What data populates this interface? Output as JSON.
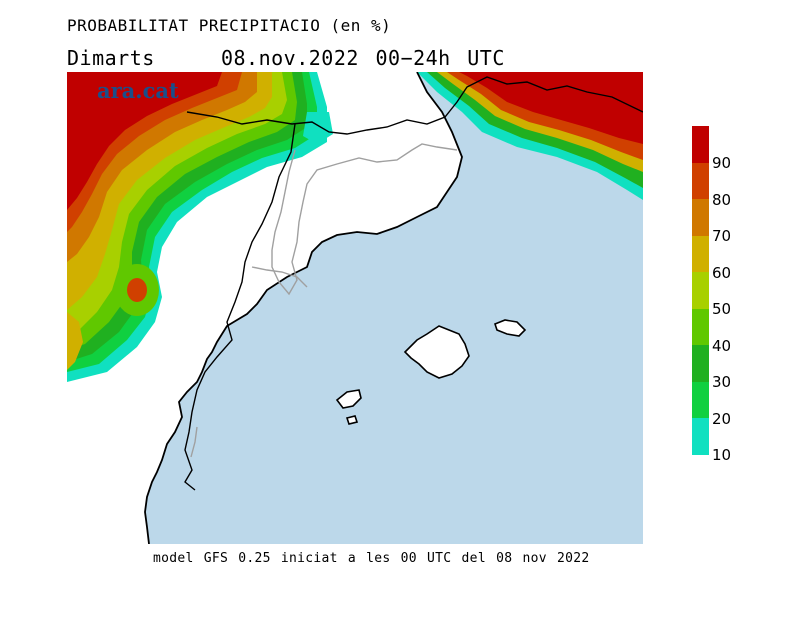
{
  "header": {
    "title": "PROBABILITAT PRECIPITACIO (en %)",
    "day": "Dimarts",
    "date_range": "08.nov.2022 00−24h UTC"
  },
  "logo": {
    "text": "ara.cat",
    "color": "#1a4f8a"
  },
  "footer": {
    "text": "model GFS 0.25 iniciat a les 00 UTC del 08 nov 2022"
  },
  "legend": {
    "ticks": [
      "10",
      "20",
      "30",
      "40",
      "50",
      "60",
      "70",
      "80",
      "90"
    ],
    "colors_top_to_bottom": [
      "#c00000",
      "#d04000",
      "#d07800",
      "#d0b000",
      "#a8d000",
      "#60c800",
      "#20b020",
      "#10d040",
      "#10e0c0"
    ]
  },
  "map": {
    "sea_color": "#bcd8ea",
    "land_color": "#ffffff",
    "coast_color": "#000000",
    "internal_border_color": "#a0a0a0"
  }
}
